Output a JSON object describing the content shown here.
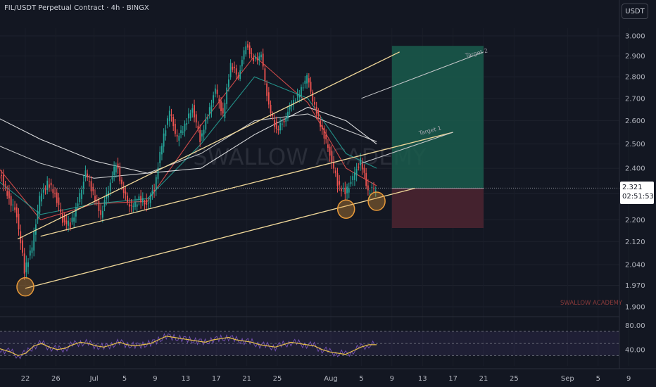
{
  "header": {
    "title": "FIL/USDT Perpetual Contract · 4h · BINGX"
  },
  "currency_button": "USDT",
  "watermark": "SWALLOW ACADEMY",
  "brand_label": "SWALLOW ACADEMY",
  "targets": {
    "target1": "Target 1",
    "target2": "Target 2"
  },
  "price_tag": {
    "price": "2.321",
    "countdown": "02:51:53"
  },
  "colors": {
    "background": "#131722",
    "up": "#26a69a",
    "down": "#ef5350",
    "channel": "#f0d89a",
    "target_zone": "#1a5c4c",
    "stop_zone": "#4a2330",
    "circle": "#e89a3a",
    "rsi_line": "#e8c04a",
    "rsi_band": "#7e57c2"
  },
  "chart_data": [
    {
      "type": "line",
      "subtype": "candlestick",
      "title": "FIL/USDT Perpetual Contract · 4h · BINGX",
      "x_ticks": [
        "22",
        "26",
        "Jul",
        "5",
        "9",
        "13",
        "17",
        "21",
        "25",
        "Aug",
        "5",
        "9",
        "13",
        "17",
        "21",
        "25",
        "Sep",
        "5",
        "9"
      ],
      "y_ticks": [
        "3.000",
        "2.900",
        "2.800",
        "2.700",
        "2.600",
        "2.500",
        "2.400",
        "2.300",
        "2.200",
        "2.120",
        "2.040",
        "1.970",
        "1.900"
      ],
      "ylim": [
        1.9,
        3.0
      ],
      "scale": "log",
      "last_price": 2.321,
      "price_path": [
        {
          "x": "Jun 18",
          "y": 2.4
        },
        {
          "x": "Jun 19",
          "y": 2.36
        },
        {
          "x": "Jun 20",
          "y": 2.28
        },
        {
          "x": "Jun 21",
          "y": 2.22
        },
        {
          "x": "Jun 22",
          "y": 2.02
        },
        {
          "x": "Jun 23",
          "y": 2.1
        },
        {
          "x": "Jun 24",
          "y": 2.28
        },
        {
          "x": "Jun 25",
          "y": 2.34
        },
        {
          "x": "Jun 26",
          "y": 2.3
        },
        {
          "x": "Jun 27",
          "y": 2.2
        },
        {
          "x": "Jun 28",
          "y": 2.18
        },
        {
          "x": "Jun 29",
          "y": 2.26
        },
        {
          "x": "Jun 30",
          "y": 2.38
        },
        {
          "x": "Jul 1",
          "y": 2.3
        },
        {
          "x": "Jul 2",
          "y": 2.22
        },
        {
          "x": "Jul 3",
          "y": 2.32
        },
        {
          "x": "Jul 4",
          "y": 2.42
        },
        {
          "x": "Jul 5",
          "y": 2.3
        },
        {
          "x": "Jul 6",
          "y": 2.24
        },
        {
          "x": "Jul 7",
          "y": 2.28
        },
        {
          "x": "Jul 8",
          "y": 2.26
        },
        {
          "x": "Jul 9",
          "y": 2.32
        },
        {
          "x": "Jul 10",
          "y": 2.5
        },
        {
          "x": "Jul 11",
          "y": 2.64
        },
        {
          "x": "Jul 12",
          "y": 2.52
        },
        {
          "x": "Jul 13",
          "y": 2.58
        },
        {
          "x": "Jul 14",
          "y": 2.66
        },
        {
          "x": "Jul 15",
          "y": 2.52
        },
        {
          "x": "Jul 16",
          "y": 2.62
        },
        {
          "x": "Jul 17",
          "y": 2.74
        },
        {
          "x": "Jul 18",
          "y": 2.62
        },
        {
          "x": "Jul 19",
          "y": 2.86
        },
        {
          "x": "Jul 20",
          "y": 2.8
        },
        {
          "x": "Jul 21",
          "y": 2.96
        },
        {
          "x": "Jul 22",
          "y": 2.88
        },
        {
          "x": "Jul 23",
          "y": 2.9
        },
        {
          "x": "Jul 24",
          "y": 2.66
        },
        {
          "x": "Jul 25",
          "y": 2.56
        },
        {
          "x": "Jul 26",
          "y": 2.6
        },
        {
          "x": "Jul 27",
          "y": 2.68
        },
        {
          "x": "Jul 28",
          "y": 2.72
        },
        {
          "x": "Jul 29",
          "y": 2.8
        },
        {
          "x": "Jul 30",
          "y": 2.66
        },
        {
          "x": "Jul 31",
          "y": 2.56
        },
        {
          "x": "Aug 1",
          "y": 2.46
        },
        {
          "x": "Aug 2",
          "y": 2.34
        },
        {
          "x": "Aug 3",
          "y": 2.3
        },
        {
          "x": "Aug 4",
          "y": 2.36
        },
        {
          "x": "Aug 5",
          "y": 2.43
        },
        {
          "x": "Aug 6",
          "y": 2.31
        },
        {
          "x": "Aug 7",
          "y": 2.321
        }
      ],
      "moving_averages": [
        {
          "color": "#ef5350",
          "points": [
            {
              "x": "Jun 18",
              "y": 2.42
            },
            {
              "x": "Jun 24",
              "y": 2.2
            },
            {
              "x": "Jul 1",
              "y": 2.26
            },
            {
              "x": "Jul 8",
              "y": 2.27
            },
            {
              "x": "Jul 15",
              "y": 2.58
            },
            {
              "x": "Jul 22",
              "y": 2.9
            },
            {
              "x": "Jul 29",
              "y": 2.68
            },
            {
              "x": "Aug 3",
              "y": 2.4
            },
            {
              "x": "Aug 7",
              "y": 2.33
            }
          ]
        },
        {
          "color": "#26a69a",
          "points": [
            {
              "x": "Jun 18",
              "y": 2.36
            },
            {
              "x": "Jun 24",
              "y": 2.22
            },
            {
              "x": "Jul 1",
              "y": 2.26
            },
            {
              "x": "Jul 8",
              "y": 2.28
            },
            {
              "x": "Jul 15",
              "y": 2.5
            },
            {
              "x": "Jul 22",
              "y": 2.8
            },
            {
              "x": "Jul 29",
              "y": 2.7
            },
            {
              "x": "Aug 3",
              "y": 2.46
            },
            {
              "x": "Aug 7",
              "y": 2.4
            }
          ]
        },
        {
          "color": "#e6e6e6",
          "points": [
            {
              "x": "Jun 18",
              "y": 2.5
            },
            {
              "x": "Jun 24",
              "y": 2.42
            },
            {
              "x": "Jul 1",
              "y": 2.36
            },
            {
              "x": "Jul 8",
              "y": 2.38
            },
            {
              "x": "Jul 15",
              "y": 2.46
            },
            {
              "x": "Jul 22",
              "y": 2.6
            },
            {
              "x": "Jul 29",
              "y": 2.63
            },
            {
              "x": "Aug 3",
              "y": 2.56
            },
            {
              "x": "Aug 7",
              "y": 2.51
            }
          ]
        },
        {
          "color": "#ffffff",
          "points": [
            {
              "x": "Jun 18",
              "y": 2.62
            },
            {
              "x": "Jun 24",
              "y": 2.52
            },
            {
              "x": "Jul 1",
              "y": 2.43
            },
            {
              "x": "Jul 8",
              "y": 2.38
            },
            {
              "x": "Jul 15",
              "y": 2.4
            },
            {
              "x": "Jul 22",
              "y": 2.54
            },
            {
              "x": "Jul 29",
              "y": 2.66
            },
            {
              "x": "Aug 3",
              "y": 2.6
            },
            {
              "x": "Aug 7",
              "y": 2.5
            }
          ]
        }
      ],
      "channel_lines": [
        {
          "name": "upper",
          "points": [
            {
              "x": "Jun 21",
              "y": 2.13
            },
            {
              "x": "Aug 10",
              "y": 2.92
            }
          ]
        },
        {
          "name": "middle",
          "points": [
            {
              "x": "Jun 24",
              "y": 2.14
            },
            {
              "x": "Aug 17",
              "y": 2.55
            }
          ]
        },
        {
          "name": "lower",
          "points": [
            {
              "x": "Jun 22",
              "y": 1.96
            },
            {
              "x": "Aug 12",
              "y": 2.32
            }
          ]
        }
      ],
      "position": {
        "entry": 2.32,
        "target": 2.95,
        "stop": 2.17,
        "start": "Aug 9",
        "end": "Aug 21"
      },
      "highlights": [
        {
          "x": "Jun 22",
          "y": 1.965
        },
        {
          "x": "Aug 3",
          "y": 2.24
        },
        {
          "x": "Aug 7",
          "y": 2.27
        }
      ]
    },
    {
      "type": "line",
      "name": "RSI",
      "y_ticks": [
        "80.00",
        "40.00"
      ],
      "ylim": [
        20,
        85
      ],
      "band": [
        30,
        70
      ],
      "midline": 50,
      "series": [
        {
          "values": [
            44,
            40,
            36,
            30,
            34,
            46,
            50,
            44,
            40,
            42,
            48,
            52,
            50,
            46,
            44,
            48,
            52,
            48,
            46,
            48,
            50,
            56,
            62,
            60,
            58,
            56,
            54,
            52,
            56,
            58,
            60,
            56,
            54,
            52,
            48,
            46,
            44,
            48,
            52,
            50,
            48,
            46,
            40,
            36,
            34,
            32,
            38,
            44,
            48,
            48
          ]
        }
      ]
    }
  ]
}
